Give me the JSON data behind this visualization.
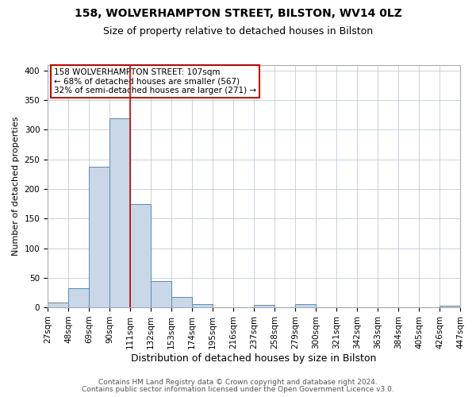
{
  "title": "158, WOLVERHAMPTON STREET, BILSTON, WV14 0LZ",
  "subtitle": "Size of property relative to detached houses in Bilston",
  "xlabel": "Distribution of detached houses by size in Bilston",
  "ylabel": "Number of detached properties",
  "footer_line1": "Contains HM Land Registry data © Crown copyright and database right 2024.",
  "footer_line2": "Contains public sector information licensed under the Open Government Licence v3.0.",
  "bin_edges": [
    27,
    48,
    69,
    90,
    111,
    132,
    153,
    174,
    195,
    216,
    237,
    258,
    279,
    300,
    321,
    342,
    363,
    384,
    405,
    426,
    447
  ],
  "bin_labels": [
    "27sqm",
    "48sqm",
    "69sqm",
    "90sqm",
    "111sqm",
    "132sqm",
    "153sqm",
    "174sqm",
    "195sqm",
    "216sqm",
    "237sqm",
    "258sqm",
    "279sqm",
    "300sqm",
    "321sqm",
    "342sqm",
    "363sqm",
    "384sqm",
    "405sqm",
    "426sqm",
    "447sqm"
  ],
  "bar_heights": [
    8,
    32,
    238,
    320,
    175,
    45,
    17,
    5,
    0,
    0,
    4,
    0,
    5,
    0,
    0,
    0,
    0,
    0,
    0,
    3
  ],
  "bar_color": "#c8d8e8",
  "bar_edge_color": "#5a8ab0",
  "vline_x": 111,
  "vline_color": "#cc0000",
  "annotation_text": "158 WOLVERHAMPTON STREET: 107sqm\n← 68% of detached houses are smaller (567)\n32% of semi-detached houses are larger (271) →",
  "ylim": [
    0,
    410
  ],
  "yticks": [
    0,
    50,
    100,
    150,
    200,
    250,
    300,
    350,
    400
  ],
  "background_color": "#ffffff",
  "plot_background": "#ffffff",
  "grid_color": "#c0ccd8",
  "title_fontsize": 10,
  "subtitle_fontsize": 9,
  "xlabel_fontsize": 9,
  "ylabel_fontsize": 8,
  "tick_fontsize": 7.5,
  "footer_fontsize": 6.5
}
